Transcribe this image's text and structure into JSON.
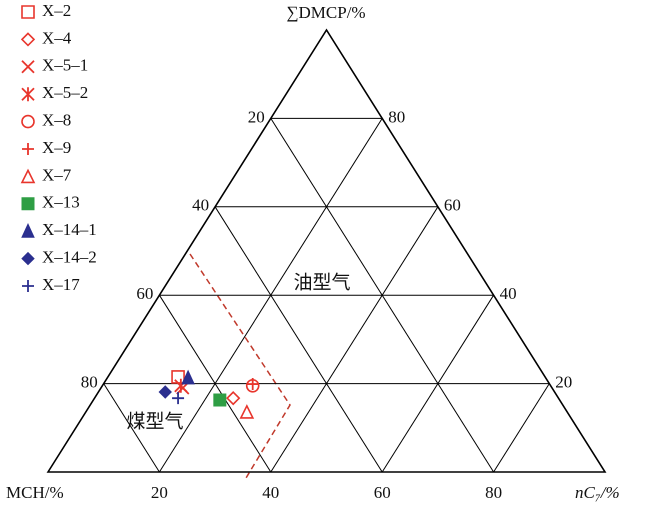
{
  "chart_data": {
    "type": "ternary",
    "top_label": "∑DMCP/%",
    "left_label": "MCH/%",
    "right_label": "nC₇/%",
    "components": [
      "∑DMCP",
      "nC7",
      "MCH"
    ],
    "dmcp_ticks": [
      20,
      40,
      60,
      80
    ],
    "nc7_ticks": [
      20,
      40,
      60,
      80
    ],
    "mch_ticks": [
      20,
      40,
      60,
      80
    ],
    "grid": true,
    "legend": "top-left",
    "annotations": [
      {
        "text": "油型气"
      },
      {
        "text": "煤型气"
      }
    ],
    "series": [
      {
        "name": "X–2",
        "color": "#e8352c",
        "marker": "square-open",
        "values": [
          21.5,
          12.6,
          65.9
        ]
      },
      {
        "name": "X–4",
        "color": "#e8352c",
        "marker": "diamond-open",
        "values": [
          16.7,
          24.9,
          58.4
        ]
      },
      {
        "name": "X–5–1",
        "color": "#e8352c",
        "marker": "x",
        "values": [
          19,
          14.7,
          66.3
        ]
      },
      {
        "name": "X–5–2",
        "color": "#e8352c",
        "marker": "asterisk",
        "values": [
          19.5,
          14.1,
          66.4
        ]
      },
      {
        "name": "X–8",
        "color": "#e8352c",
        "marker": "circle-open",
        "values": [
          19.5,
          27,
          53.5
        ]
      },
      {
        "name": "X–9",
        "color": "#e8352c",
        "marker": "plus",
        "values": [
          19.9,
          26.8,
          53.3
        ]
      },
      {
        "name": "X–7",
        "color": "#e8352c",
        "marker": "triangle-open",
        "values": [
          13.6,
          28.9,
          57.5
        ]
      },
      {
        "name": "X–13",
        "color": "#2e9e44",
        "marker": "square",
        "values": [
          16.3,
          22.7,
          61
        ]
      },
      {
        "name": "X–14–1",
        "color": "#2b2f8f",
        "marker": "triangle",
        "values": [
          21.3,
          14.5,
          64.2
        ]
      },
      {
        "name": "X–14–2",
        "color": "#2b2f8f",
        "marker": "diamond",
        "values": [
          18.1,
          12,
          69.9
        ]
      },
      {
        "name": "X–17",
        "color": "#2b2f8f",
        "marker": "plus",
        "values": [
          16.7,
          15,
          68.3
        ]
      }
    ]
  }
}
